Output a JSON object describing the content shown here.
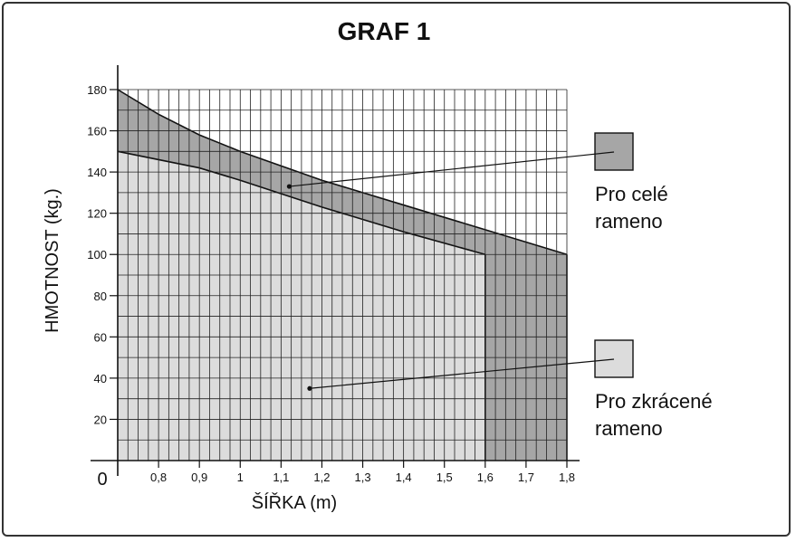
{
  "chart_data": {
    "type": "area",
    "title": "GRAF 1",
    "xlabel": "ŠÍŘKA (m)",
    "ylabel": "HMOTNOST (kg.)",
    "origin_label": "0",
    "xlim": [
      0.7,
      1.8
    ],
    "ylim": [
      0,
      180
    ],
    "x_ticks": [
      {
        "value": 0.8,
        "label": "0,8"
      },
      {
        "value": 0.9,
        "label": "0,9"
      },
      {
        "value": 1.0,
        "label": "1"
      },
      {
        "value": 1.1,
        "label": "1,1"
      },
      {
        "value": 1.2,
        "label": "1,2"
      },
      {
        "value": 1.3,
        "label": "1,3"
      },
      {
        "value": 1.4,
        "label": "1,4"
      },
      {
        "value": 1.5,
        "label": "1,5"
      },
      {
        "value": 1.6,
        "label": "1,6"
      },
      {
        "value": 1.7,
        "label": "1,7"
      },
      {
        "value": 1.8,
        "label": "1,8"
      }
    ],
    "y_ticks": [
      {
        "value": 20,
        "label": "20"
      },
      {
        "value": 40,
        "label": "40"
      },
      {
        "value": 60,
        "label": "60"
      },
      {
        "value": 80,
        "label": "80"
      },
      {
        "value": 100,
        "label": "100"
      },
      {
        "value": 120,
        "label": "120"
      },
      {
        "value": 140,
        "label": "140"
      },
      {
        "value": 160,
        "label": "160"
      },
      {
        "value": 180,
        "label": "180"
      }
    ],
    "grid": true,
    "series": [
      {
        "name": "Pro celé rameno",
        "color": "#a6a6a6",
        "points": [
          [
            0.7,
            180
          ],
          [
            0.8,
            168
          ],
          [
            0.9,
            158
          ],
          [
            1.0,
            150
          ],
          [
            1.2,
            136
          ],
          [
            1.4,
            124
          ],
          [
            1.6,
            112
          ],
          [
            1.8,
            100
          ]
        ]
      },
      {
        "name": "Pro zkrácené rameno",
        "color": "#dcdcdc",
        "points": [
          [
            0.7,
            150
          ],
          [
            0.9,
            142
          ],
          [
            1.0,
            136
          ],
          [
            1.2,
            123
          ],
          [
            1.4,
            111
          ],
          [
            1.6,
            100
          ]
        ]
      }
    ],
    "legend": [
      {
        "line1": "Pro celé",
        "line2": "rameno",
        "color": "#a6a6a6"
      },
      {
        "line1": "Pro zkrácené",
        "line2": "rameno",
        "color": "#dcdcdc"
      }
    ]
  }
}
